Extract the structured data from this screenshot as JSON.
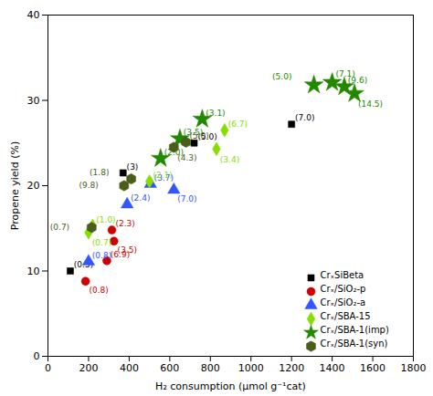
{
  "chart_data": {
    "type": "scatter",
    "xlabel": "H₂ consumption (μmol g⁻¹cat)",
    "ylabel": "Propene yield (%)",
    "xlim": [
      0,
      1800
    ],
    "ylim": [
      0,
      40
    ],
    "xticks": [
      0,
      200,
      400,
      600,
      800,
      1000,
      1200,
      1400,
      1600,
      1800
    ],
    "yticks": [
      0,
      10,
      20,
      30,
      40
    ],
    "grid": false,
    "legend": "lower right",
    "series": [
      {
        "name": "CrₓSiBeta",
        "color": "#000000",
        "marker": "square",
        "x": [
          110,
          370,
          720,
          1200
        ],
        "values": [
          10.0,
          21.5,
          25.0,
          27.2
        ],
        "annotations": [
          "(0.5)",
          "(3)",
          "(5.0)",
          "(7.0)"
        ]
      },
      {
        "name": "Crₓ/SiO₂-p",
        "color": "#cc0000",
        "marker": "circle",
        "x": [
          185,
          290,
          315,
          325
        ],
        "values": [
          8.8,
          11.2,
          14.8,
          13.5
        ],
        "annotations": [
          "(0.8)",
          "(6.9)",
          "(2.3)",
          "(3.5)"
        ]
      },
      {
        "name": "Crₓ/SiO₂-a",
        "color": "#3355ff",
        "marker": "triangle",
        "x": [
          200,
          390,
          505,
          620
        ],
        "values": [
          11.1,
          17.8,
          20.2,
          19.5
        ],
        "annotations": [
          "(0.8)",
          "(2.4)",
          "(3.7)",
          "(7.0)"
        ]
      },
      {
        "name": "Crₓ/SBA-15",
        "color": "#88dd00",
        "marker": "diamond",
        "x": [
          200,
          220,
          500,
          870,
          830
        ],
        "values": [
          14.5,
          15.3,
          20.5,
          26.5,
          24.3
        ],
        "annotations": [
          "(0.7)",
          "(1.0)",
          "(2.1)",
          "(6.7)",
          "(3.4)"
        ]
      },
      {
        "name": "Crₓ/SBA-1(imp)",
        "color": "#228800",
        "marker": "star",
        "x": [
          555,
          650,
          760,
          1310,
          1400,
          1460,
          1510
        ],
        "values": [
          23.2,
          25.5,
          27.8,
          31.8,
          32.1,
          31.6,
          30.8
        ],
        "annotations": [
          "(2.0)",
          "(3.5)",
          "(3.1)",
          "(5.0)",
          "(7.1)",
          "(9.6)",
          "(14.5)"
        ]
      },
      {
        "name": "Crₓ/SBA-1(syn)",
        "color": "#4a5e1a",
        "marker": "hexagon",
        "x": [
          215,
          375,
          410,
          620,
          680
        ],
        "values": [
          15.1,
          20.0,
          20.8,
          24.5,
          25.1
        ],
        "annotations": [
          "(0.7)",
          "(9.8)",
          "(1.8)",
          "(4.3)",
          "(5.0)"
        ]
      }
    ]
  }
}
